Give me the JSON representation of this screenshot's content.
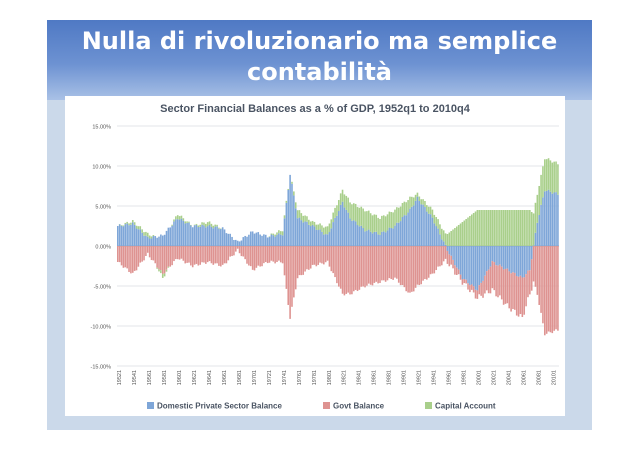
{
  "slide": {
    "title_line1": "Nulla di rivoluzionario ma semplice",
    "title_line2": "contabilità"
  },
  "chart_data": {
    "type": "bar",
    "stacked": true,
    "title": "Sector Financial Balances as a % of GDP, 1952q1 to 2010q4",
    "ylim": [
      -15,
      15
    ],
    "y_ticks": [
      "15.00%",
      "10.00%",
      "5.00%",
      "0.00%",
      "-5.00%",
      "-10.00%",
      "-15.00%"
    ],
    "y_tick_values": [
      15,
      10,
      5,
      0,
      -5,
      -10,
      -15
    ],
    "x_ticks": [
      "19521",
      "19541",
      "19561",
      "19581",
      "19601",
      "19621",
      "19641",
      "19661",
      "19681",
      "19701",
      "19721",
      "19741",
      "19761",
      "19781",
      "19801",
      "19821",
      "19841",
      "19861",
      "19881",
      "19901",
      "19921",
      "19941",
      "19961",
      "19981",
      "20001",
      "20021",
      "20041",
      "20061",
      "20081",
      "20101"
    ],
    "grid": true,
    "legend_position": "bottom",
    "colors": {
      "private": "#7ea6d8",
      "govt": "#de9391",
      "capital": "#a9cf8b"
    },
    "series": [
      {
        "name": "Domestic Private Sector Balance",
        "x": [
          1952,
          1954,
          1956,
          1958,
          1960,
          1962,
          1964,
          1966,
          1968,
          1970,
          1972,
          1974,
          1975,
          1976,
          1978,
          1980,
          1982,
          1983,
          1985,
          1987,
          1989,
          1991,
          1992,
          1994,
          1996,
          1998,
          2000,
          2002,
          2004,
          2006,
          2007,
          2008,
          2009,
          2010.75
        ],
        "values": [
          2.5,
          2.8,
          1,
          1.3,
          3.5,
          2.5,
          2.5,
          2.2,
          0.5,
          1.8,
          1.2,
          1.5,
          9,
          3.5,
          2.5,
          1.3,
          5.5,
          3.5,
          2,
          1.5,
          2.5,
          4.5,
          6,
          3.5,
          -0.5,
          -4,
          -5.5,
          -2,
          -3,
          -4,
          -3,
          3,
          7,
          6.5
        ]
      },
      {
        "name": "Govt Balance",
        "x": [
          1952,
          1954,
          1956,
          1958,
          1960,
          1962,
          1964,
          1966,
          1968,
          1970,
          1972,
          1974,
          1975,
          1976,
          1978,
          1980,
          1982,
          1983,
          1985,
          1987,
          1989,
          1991,
          1992,
          1994,
          1996,
          1998,
          2000,
          2002,
          2004,
          2006,
          2007,
          2008,
          2009,
          2010.75
        ],
        "values": [
          -2,
          -3.5,
          -1,
          -3.5,
          -1.5,
          -2.5,
          -2,
          -2.5,
          -0.5,
          -3,
          -2,
          -2,
          -9,
          -4,
          -2.5,
          -2,
          -6,
          -6,
          -5,
          -4.5,
          -4,
          -6,
          -5,
          -3.5,
          -1.5,
          -0.5,
          -1,
          -3.5,
          -4.5,
          -5,
          -3,
          -6,
          -11,
          -10.5
        ]
      },
      {
        "name": "Capital Account",
        "x": [
          1952,
          1954,
          1956,
          1958,
          1960,
          1962,
          1964,
          1966,
          1968,
          1970,
          1972,
          1974,
          1975,
          1976,
          1978,
          1980,
          1982,
          1983,
          1985,
          1987,
          1989,
          1991,
          1992,
          1994,
          1996,
          1998,
          2000,
          2002,
          2004,
          2006,
          2007,
          2008,
          2009,
          2010.75
        ],
        "values": [
          0,
          0.3,
          0.5,
          -0.5,
          0.5,
          0,
          0.5,
          0,
          0,
          0,
          0,
          0.5,
          0,
          1,
          0.5,
          1,
          1.5,
          2,
          2.5,
          2,
          2,
          1.5,
          0.5,
          1,
          1.5,
          3,
          4.5,
          4.5,
          4.5,
          4.5,
          4.5,
          3.5,
          4,
          3.8
        ]
      }
    ]
  }
}
